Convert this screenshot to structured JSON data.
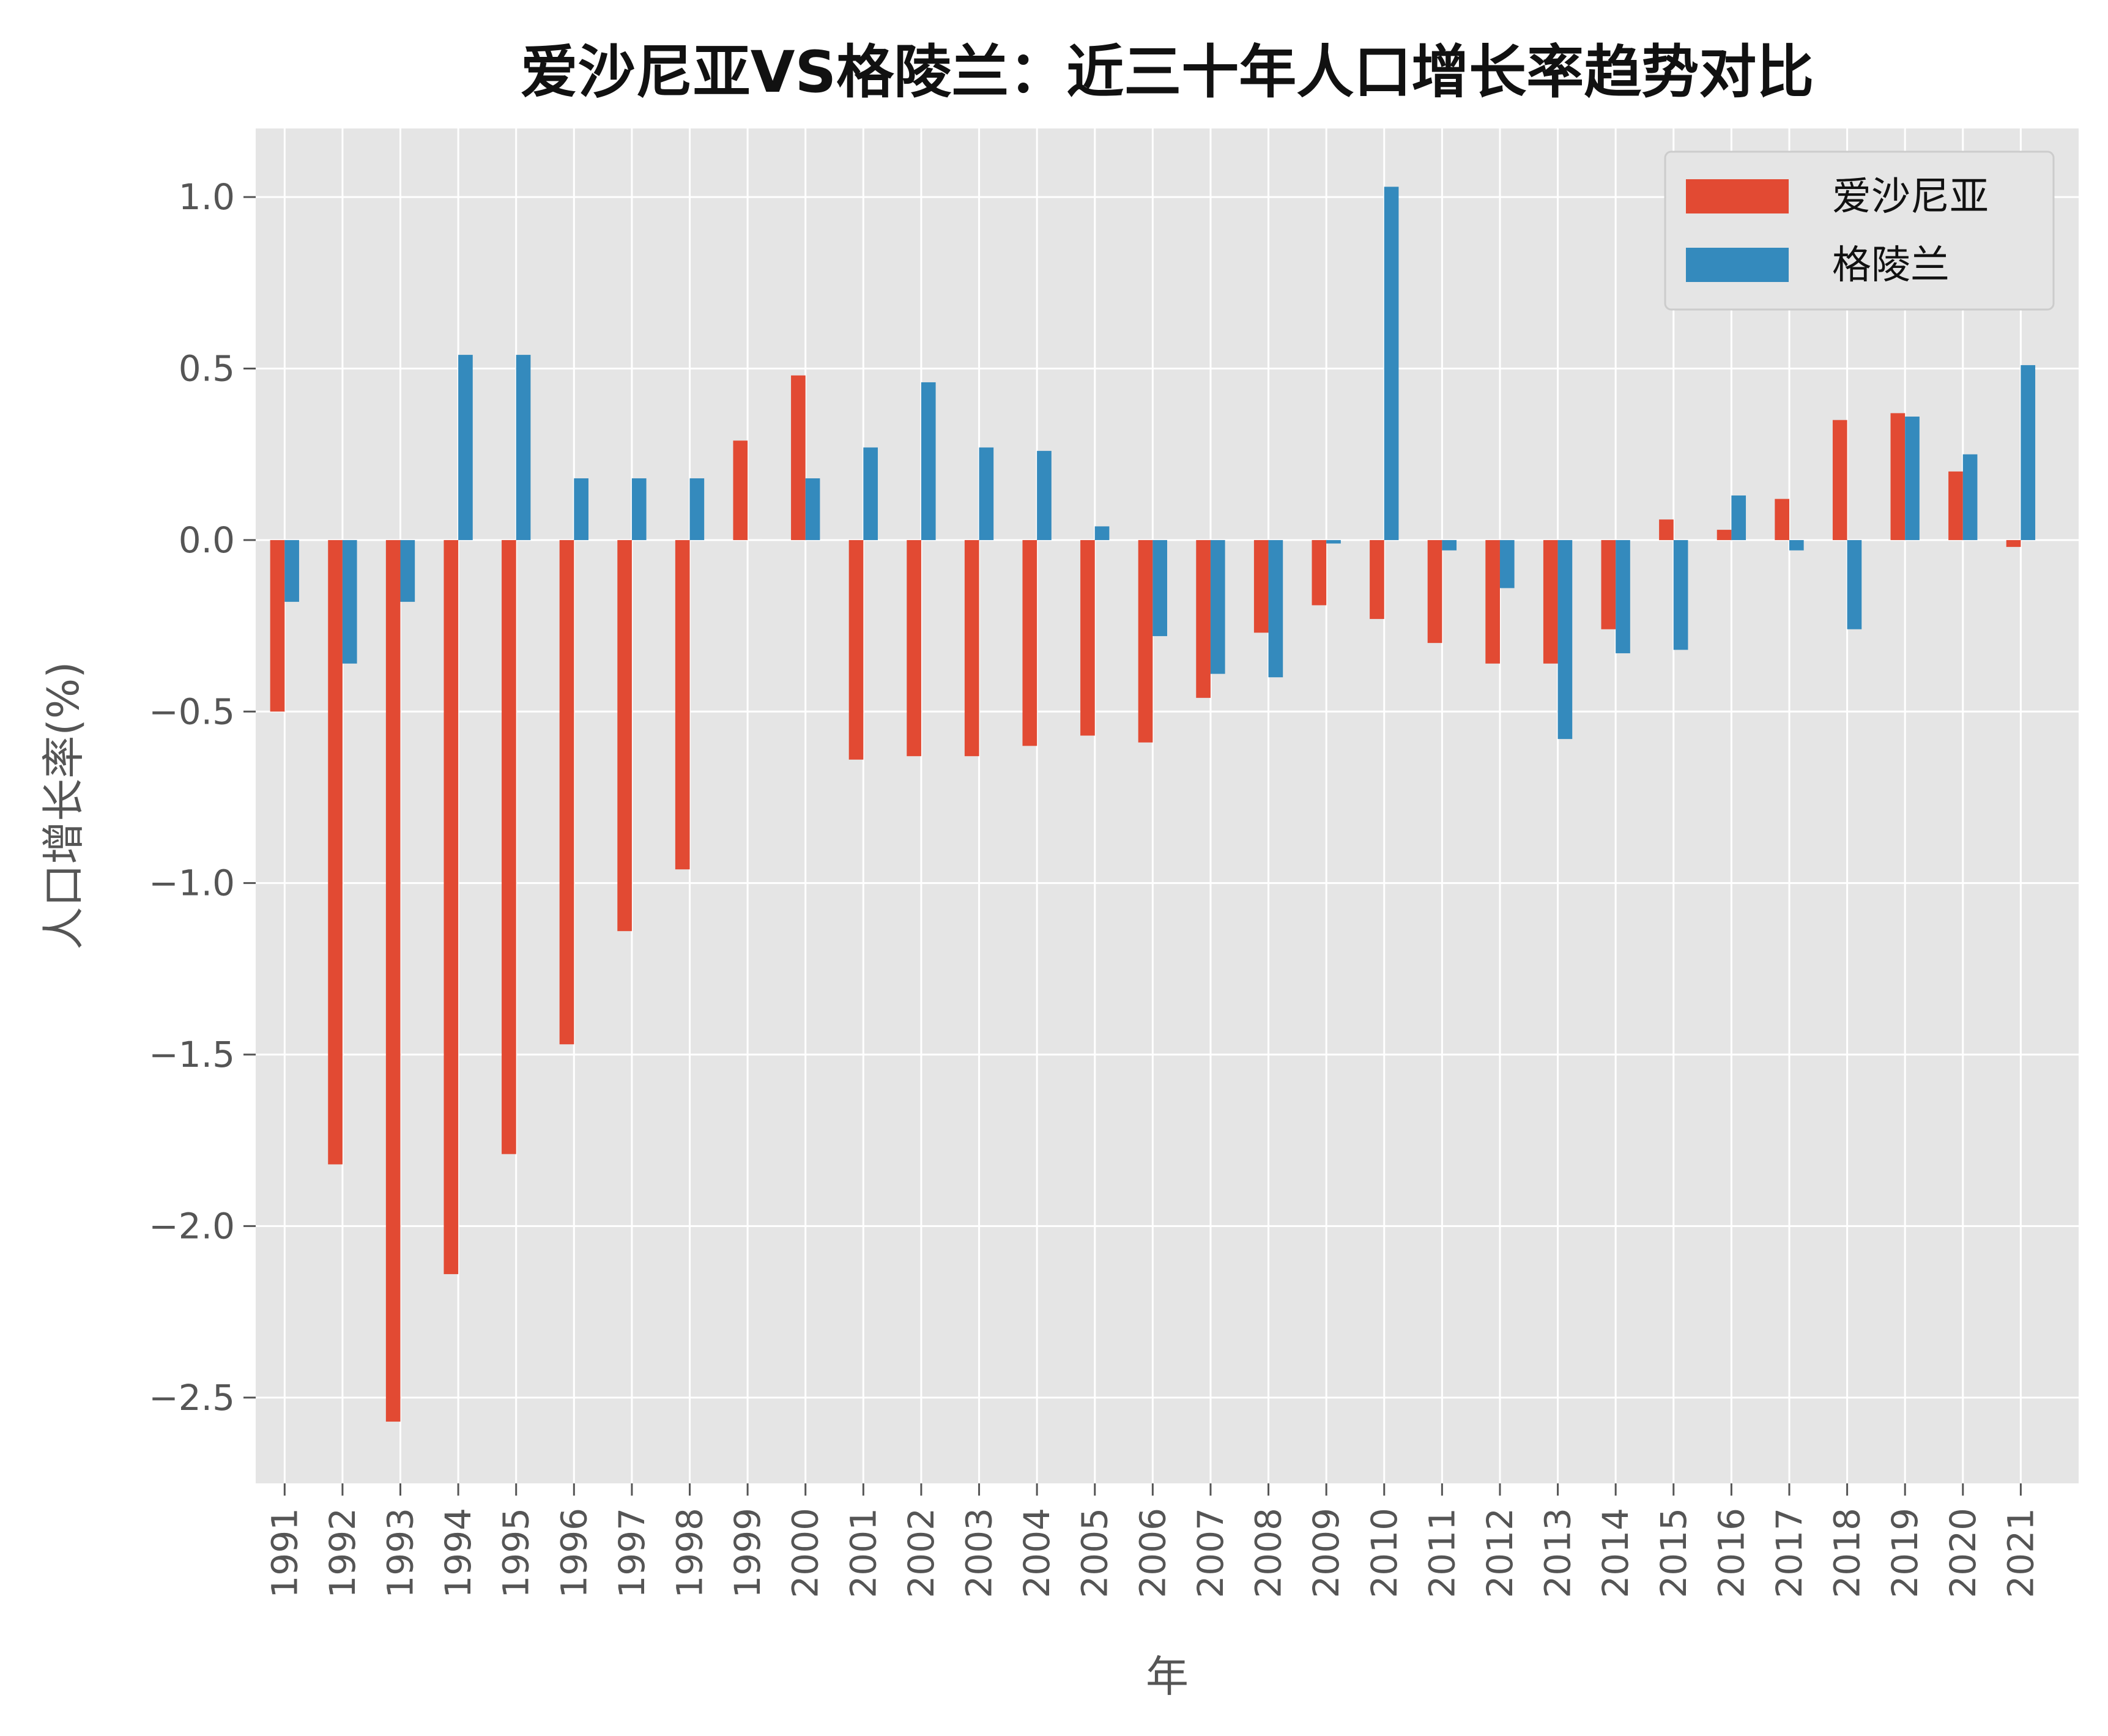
{
  "chart_data": {
    "type": "bar",
    "title": "爱沙尼亚VS格陵兰：近三十年人口增长率趋势对比",
    "xlabel": "年",
    "ylabel": "人口增长率(%)",
    "ylim": [
      -2.75,
      1.2
    ],
    "yticks": [
      1.0,
      0.5,
      0.0,
      -0.5,
      -1.0,
      -1.5,
      -2.0,
      -2.5
    ],
    "ytick_labels": [
      "1.0",
      "0.5",
      "0.0",
      "−0.5",
      "−1.0",
      "−1.5",
      "−2.0",
      "−2.5"
    ],
    "grid": true,
    "legend_position": "top-right",
    "categories": [
      "1991",
      "1992",
      "1993",
      "1994",
      "1995",
      "1996",
      "1997",
      "1998",
      "1999",
      "2000",
      "2001",
      "2002",
      "2003",
      "2004",
      "2005",
      "2006",
      "2007",
      "2008",
      "2009",
      "2010",
      "2011",
      "2012",
      "2013",
      "2014",
      "2015",
      "2016",
      "2017",
      "2018",
      "2019",
      "2020",
      "2021"
    ],
    "series": [
      {
        "name": "爱沙尼亚",
        "color": "#E24A33",
        "values": [
          -0.5,
          -1.82,
          -2.57,
          -2.14,
          -1.79,
          -1.47,
          -1.14,
          -0.96,
          0.29,
          0.48,
          -0.64,
          -0.63,
          -0.63,
          -0.6,
          -0.57,
          -0.59,
          -0.46,
          -0.27,
          -0.19,
          -0.23,
          -0.3,
          -0.36,
          -0.36,
          -0.26,
          0.06,
          0.03,
          0.12,
          0.35,
          0.37,
          0.2,
          -0.02
        ]
      },
      {
        "name": "格陵兰",
        "color": "#348ABD",
        "values": [
          -0.18,
          -0.36,
          -0.18,
          0.54,
          0.54,
          0.18,
          0.18,
          0.18,
          0.0,
          0.18,
          0.27,
          0.46,
          0.27,
          0.26,
          0.04,
          -0.28,
          -0.39,
          -0.4,
          -0.01,
          1.03,
          -0.03,
          -0.14,
          -0.58,
          -0.33,
          -0.32,
          0.13,
          -0.03,
          -0.26,
          0.36,
          0.25,
          0.51
        ]
      }
    ]
  }
}
